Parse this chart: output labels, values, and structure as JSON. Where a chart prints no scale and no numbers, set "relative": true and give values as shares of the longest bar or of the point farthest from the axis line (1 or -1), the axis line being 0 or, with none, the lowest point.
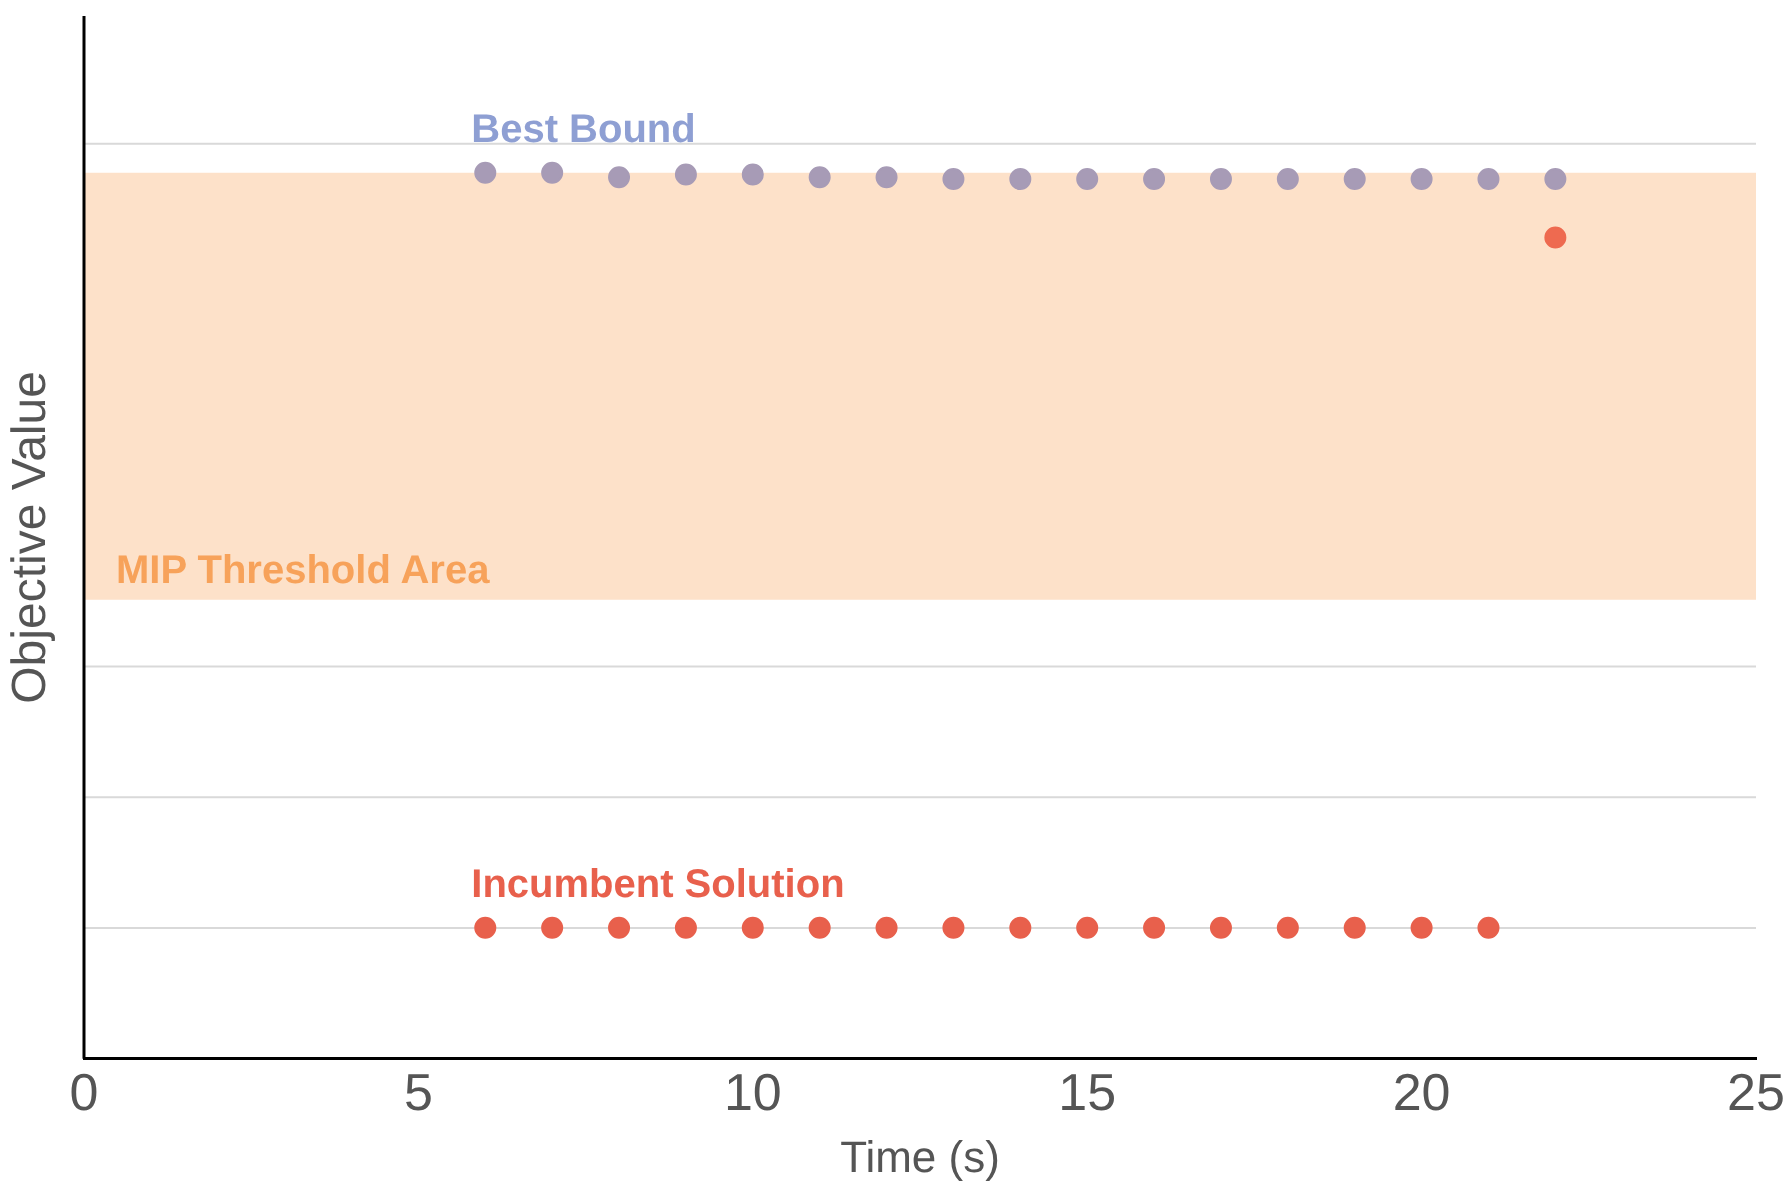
{
  "chart_data": {
    "type": "scatter",
    "relative": true,
    "xlabel": "Time (s)",
    "ylabel": "Objective Value",
    "xlim": [
      0,
      25
    ],
    "xticks": [
      0,
      5,
      10,
      15,
      20,
      25
    ],
    "grid": "y",
    "legend": false,
    "marker": "circle",
    "series": [
      {
        "name": "Best Bound",
        "color": "#a79bb6",
        "x": [
          6,
          7,
          8,
          9,
          10,
          11,
          12,
          13,
          14,
          15,
          16,
          17,
          18,
          19,
          20,
          21,
          22
        ],
        "values": [
          1.0,
          1.0,
          0.995,
          0.998,
          0.998,
          0.995,
          0.995,
          0.993,
          0.993,
          0.993,
          0.993,
          0.993,
          0.993,
          0.993,
          0.993,
          0.993,
          0.993
        ]
      },
      {
        "color": "#ee6a50",
        "x": [
          22
        ],
        "values": [
          0.927
        ]
      },
      {
        "name": "Incumbent Solution",
        "color": "#e8604c",
        "x": [
          6,
          7,
          8,
          9,
          10,
          11,
          12,
          13,
          14,
          15,
          16,
          17,
          18,
          19,
          20,
          21
        ],
        "values": [
          0.148,
          0.148,
          0.148,
          0.148,
          0.148,
          0.148,
          0.148,
          0.148,
          0.148,
          0.148,
          0.148,
          0.148,
          0.148,
          0.148,
          0.148,
          0.148
        ]
      }
    ],
    "bands": [
      {
        "axis": "y",
        "from": 0.518,
        "to": 1.0,
        "label": "MIP Threshold Area",
        "color": "#fde1c9"
      }
    ]
  }
}
